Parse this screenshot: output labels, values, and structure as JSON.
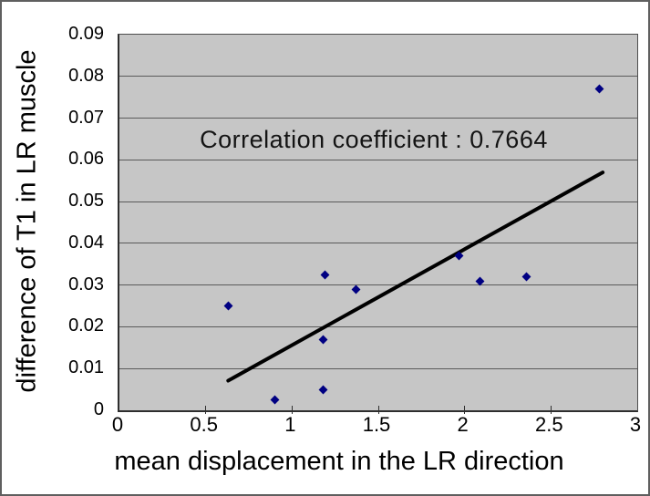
{
  "chart_data": {
    "type": "scatter",
    "title": "",
    "annotation": "Correlation coefficient : 0.7664",
    "xlabel": "mean displacement in the LR direction",
    "ylabel": "difference of T1 in LR muscle",
    "xlim": [
      0,
      3
    ],
    "ylim": [
      0,
      0.09
    ],
    "x_ticks": [
      0,
      0.5,
      1,
      1.5,
      2,
      2.5,
      3
    ],
    "x_tick_labels": [
      "0",
      "0.5",
      "1",
      "1.5",
      "2",
      "2.5",
      "3"
    ],
    "y_ticks": [
      0,
      0.01,
      0.02,
      0.03,
      0.04,
      0.05,
      0.06,
      0.07,
      0.08,
      0.09
    ],
    "y_tick_labels": [
      "0",
      "0.01",
      "0.02",
      "0.03",
      "0.04",
      "0.05",
      "0.06",
      "0.07",
      "0.08",
      "0.09"
    ],
    "grid": true,
    "legend": false,
    "points": [
      {
        "x": 0.63,
        "y": 0.025
      },
      {
        "x": 0.9,
        "y": 0.0025
      },
      {
        "x": 1.18,
        "y": 0.005
      },
      {
        "x": 1.18,
        "y": 0.017
      },
      {
        "x": 1.19,
        "y": 0.0325
      },
      {
        "x": 1.37,
        "y": 0.029
      },
      {
        "x": 1.97,
        "y": 0.037
      },
      {
        "x": 2.09,
        "y": 0.031
      },
      {
        "x": 2.36,
        "y": 0.032
      },
      {
        "x": 2.78,
        "y": 0.077
      }
    ],
    "trendline": {
      "x1": 0.63,
      "y1": 0.0071,
      "x2": 2.8,
      "y2": 0.057
    },
    "colors": {
      "point": "#000082",
      "trendline": "#000000",
      "plot_bg": "#c6c6c6",
      "gridline": "#5a5a5a",
      "text": "#000000"
    }
  }
}
